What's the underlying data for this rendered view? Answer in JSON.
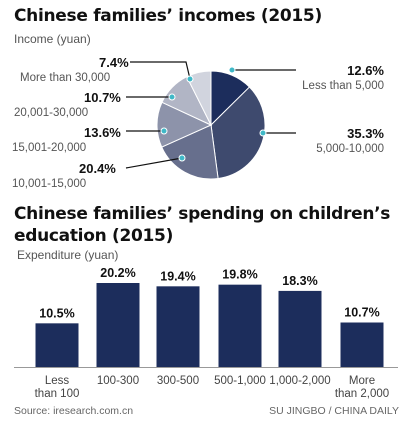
{
  "charts": {
    "income": {
      "title": "Chinese families’ incomes (2015)",
      "unit": "Income (yuan)"
    },
    "education": {
      "title": "Chinese families’ spending on children’s education (2015)",
      "unit": "Expenditure (yuan)"
    }
  },
  "chart_data": [
    {
      "type": "pie",
      "title": "Chinese families’ incomes (2015)",
      "ylabel": "Income (yuan)",
      "slices": [
        {
          "label": "Less than 5,000",
          "value": 12.6,
          "text": "12.6%",
          "color": "#1c2d5c"
        },
        {
          "label": "5,000-10,000",
          "value": 35.3,
          "text": "35.3%",
          "color": "#3e4a6e"
        },
        {
          "label": "10,001-15,000",
          "value": 20.4,
          "text": "20.4%",
          "color": "#676f8d"
        },
        {
          "label": "15,001-20,000",
          "value": 13.6,
          "text": "13.6%",
          "color": "#8d93aa"
        },
        {
          "label": "20,001-30,000",
          "value": 10.7,
          "text": "10.7%",
          "color": "#b1b5c5"
        },
        {
          "label": "More than 30,000",
          "value": 7.4,
          "text": "7.4%",
          "color": "#d1d4de"
        }
      ],
      "callout_color": "#3fb8c7"
    },
    {
      "type": "bar",
      "title": "Chinese families’ spending on children’s education (2015)",
      "ylabel": "Expenditure (yuan)",
      "categories": [
        "Less than 100",
        "100-300",
        "300-500",
        "500-1,000",
        "1,000-2,000",
        "More than 2,000"
      ],
      "category_lines": [
        [
          "Less",
          "than 100"
        ],
        [
          "100-300"
        ],
        [
          "300-500"
        ],
        [
          "500-1,000"
        ],
        [
          "1,000-2,000"
        ],
        [
          "More",
          "than 2,000"
        ]
      ],
      "values": [
        10.5,
        20.2,
        19.4,
        19.8,
        18.3,
        10.7
      ],
      "value_labels": [
        "10.5%",
        "20.2%",
        "19.4%",
        "19.8%",
        "18.3%",
        "10.7%"
      ],
      "ylim": [
        0,
        20.2
      ],
      "bar_color": "#1c2d5c"
    }
  ],
  "footer": {
    "source": "Source: iresearch.com.cn",
    "credit": "SU JINGBO / CHINA DAILY"
  }
}
